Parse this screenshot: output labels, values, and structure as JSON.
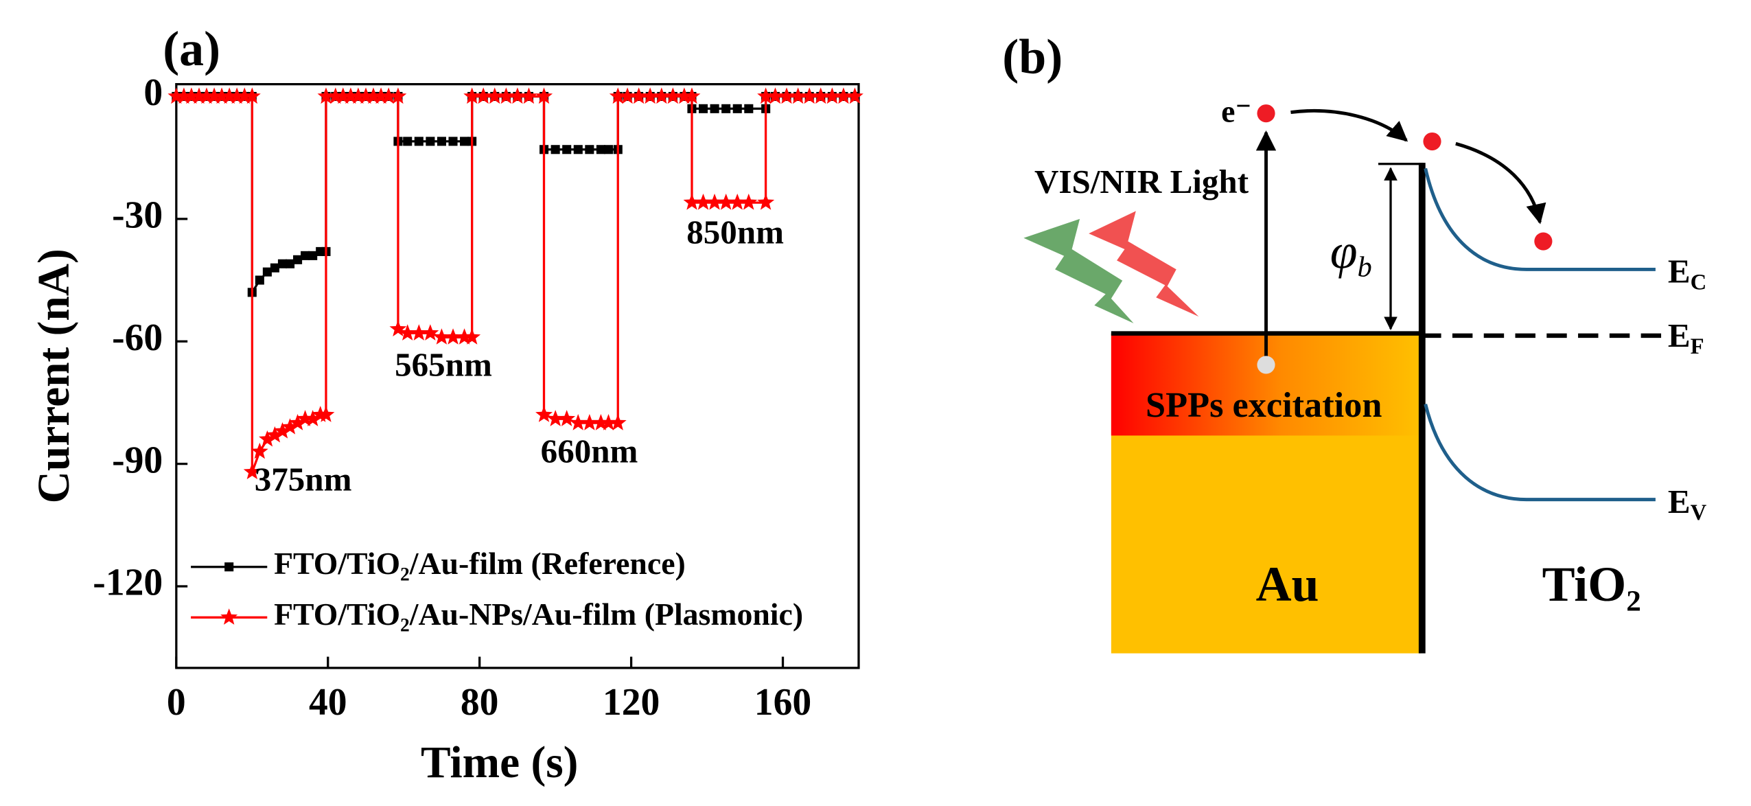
{
  "chart_data": {
    "type": "line",
    "title": "(a)",
    "x_label": "Time (s)",
    "y_label": "Current (nA)",
    "xlim": [
      0,
      180
    ],
    "xticks": [
      0,
      40,
      80,
      120,
      160
    ],
    "ylim": [
      -140,
      3
    ],
    "yticks": [
      0,
      -30,
      -60,
      -90,
      -120
    ],
    "grid": false,
    "legend": "lower left",
    "x": [
      0,
      2,
      4,
      6,
      8,
      10,
      12,
      14,
      16,
      18,
      20,
      20,
      22,
      24,
      26,
      28,
      30,
      32,
      34,
      36,
      38,
      39.5,
      39.5,
      42,
      44,
      46,
      48,
      50,
      52,
      54,
      56,
      58.5,
      58.5,
      61,
      64,
      67,
      70,
      73,
      76,
      78,
      78,
      81,
      84,
      87,
      90,
      93,
      97,
      97,
      100,
      103,
      106,
      109,
      112,
      114,
      116.5,
      116.5,
      119,
      122,
      125,
      128,
      131,
      134,
      136,
      136,
      139,
      142,
      145,
      148,
      151,
      155.5,
      155.5,
      158,
      161,
      164,
      167,
      170,
      173,
      176,
      179
    ],
    "series": [
      {
        "name": "FTO/TiO₂/Au-film (Reference)",
        "color": "#000000",
        "marker": "square",
        "values": [
          0,
          0,
          0,
          0,
          0,
          0,
          0,
          0,
          0,
          0,
          0,
          -48,
          -45,
          -43,
          -42,
          -41,
          -41,
          -40,
          -39,
          -39,
          -38,
          -38,
          0,
          0,
          0,
          0,
          0,
          0,
          0,
          0,
          0,
          0,
          -11,
          -11,
          -11,
          -11,
          -11,
          -11,
          -11,
          -11,
          0,
          0,
          0,
          0,
          0,
          0,
          0,
          -13,
          -13,
          -13,
          -13,
          -13,
          -13,
          -13,
          -13,
          0,
          0,
          0,
          0,
          0,
          0,
          0,
          0,
          -3,
          -3,
          -3,
          -3,
          -3,
          -3,
          -3,
          0,
          0,
          0,
          0,
          0,
          0,
          0,
          0,
          0
        ]
      },
      {
        "name": "FTO/TiO₂/Au-NPs/Au-film (Plasmonic)",
        "color": "#ff0000",
        "marker": "star",
        "values": [
          0,
          0,
          0,
          0,
          0,
          0,
          0,
          0,
          0,
          0,
          0,
          -92,
          -87,
          -84,
          -83,
          -82,
          -81,
          -80,
          -79,
          -79,
          -78,
          -78,
          0,
          0,
          0,
          0,
          0,
          0,
          0,
          0,
          0,
          0,
          -57,
          -58,
          -58,
          -58,
          -59,
          -59,
          -59,
          -59,
          0,
          0,
          0,
          0,
          0,
          0,
          0,
          -78,
          -79,
          -79,
          -80,
          -80,
          -80,
          -80,
          -80,
          0,
          0,
          0,
          0,
          0,
          0,
          0,
          0,
          -26,
          -26,
          -26,
          -26,
          -26,
          -26,
          -26,
          0,
          0,
          0,
          0,
          0,
          0,
          0,
          0,
          0
        ]
      }
    ],
    "annotations": [
      "375nm",
      "565nm",
      "660nm",
      "850nm"
    ]
  },
  "diagram": {
    "title": "(b)",
    "electron": "e⁻",
    "light": "VIS/NIR Light",
    "barrier": {
      "text": "φ",
      "sub": "b"
    },
    "excitation": "SPPs excitation",
    "metal": "Au",
    "semiconductor": "TiO₂",
    "ec": {
      "text": "E",
      "sub": "C"
    },
    "ef": {
      "text": "E",
      "sub": "F"
    },
    "ev": {
      "text": "E",
      "sub": "V"
    }
  }
}
